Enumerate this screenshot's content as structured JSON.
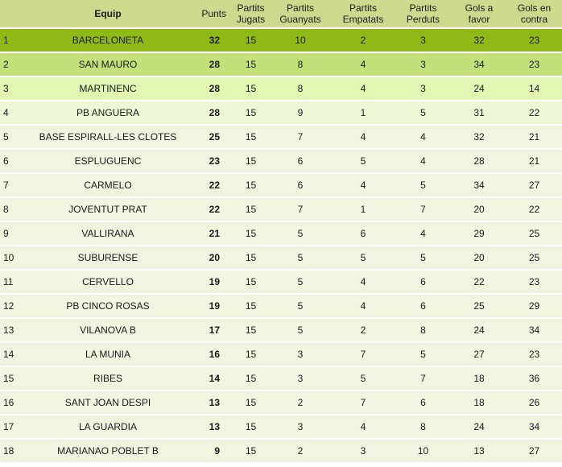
{
  "colors": {
    "header_bg": "#cdd98c",
    "row_1_bg": "#8fb916",
    "row_2_bg": "#c5e07b",
    "row_3_bg": "#e2f5b3",
    "row_4_bg": "#eef7d5",
    "row_default_bg": "#f1f5e0"
  },
  "table": {
    "headers": {
      "position": "",
      "team": "Equip",
      "points": "Punts",
      "played_1": "Partits",
      "played_2": "Jugats",
      "won_1": "Partits",
      "won_2": "Guanyats",
      "drawn_1": "Partits",
      "drawn_2": "Empatats",
      "lost_1": "Partits",
      "lost_2": "Perduts",
      "goals_for_1": "Gols a",
      "goals_for_2": "favor",
      "goals_against_1": "Gols en",
      "goals_against_2": "contra"
    },
    "rows": [
      {
        "pos": "1",
        "team": "BARCELONETA",
        "pts": "32",
        "pj": "15",
        "pg": "10",
        "pe": "2",
        "pp": "3",
        "gf": "32",
        "gc": "23"
      },
      {
        "pos": "2",
        "team": "SAN MAURO",
        "pts": "28",
        "pj": "15",
        "pg": "8",
        "pe": "4",
        "pp": "3",
        "gf": "34",
        "gc": "23"
      },
      {
        "pos": "3",
        "team": "MARTINENC",
        "pts": "28",
        "pj": "15",
        "pg": "8",
        "pe": "4",
        "pp": "3",
        "gf": "24",
        "gc": "14"
      },
      {
        "pos": "4",
        "team": "PB ANGUERA",
        "pts": "28",
        "pj": "15",
        "pg": "9",
        "pe": "1",
        "pp": "5",
        "gf": "31",
        "gc": "22"
      },
      {
        "pos": "5",
        "team": "BASE ESPIRALL-LES CLOTES",
        "pts": "25",
        "pj": "15",
        "pg": "7",
        "pe": "4",
        "pp": "4",
        "gf": "32",
        "gc": "21"
      },
      {
        "pos": "6",
        "team": "ESPLUGUENC",
        "pts": "23",
        "pj": "15",
        "pg": "6",
        "pe": "5",
        "pp": "4",
        "gf": "28",
        "gc": "21"
      },
      {
        "pos": "7",
        "team": "CARMELO",
        "pts": "22",
        "pj": "15",
        "pg": "6",
        "pe": "4",
        "pp": "5",
        "gf": "34",
        "gc": "27"
      },
      {
        "pos": "8",
        "team": "JOVENTUT PRAT",
        "pts": "22",
        "pj": "15",
        "pg": "7",
        "pe": "1",
        "pp": "7",
        "gf": "20",
        "gc": "22"
      },
      {
        "pos": "9",
        "team": "VALLIRANA",
        "pts": "21",
        "pj": "15",
        "pg": "5",
        "pe": "6",
        "pp": "4",
        "gf": "29",
        "gc": "25"
      },
      {
        "pos": "10",
        "team": "SUBURENSE",
        "pts": "20",
        "pj": "15",
        "pg": "5",
        "pe": "5",
        "pp": "5",
        "gf": "20",
        "gc": "25"
      },
      {
        "pos": "11",
        "team": "CERVELLO",
        "pts": "19",
        "pj": "15",
        "pg": "5",
        "pe": "4",
        "pp": "6",
        "gf": "22",
        "gc": "23"
      },
      {
        "pos": "12",
        "team": "PB CINCO ROSAS",
        "pts": "19",
        "pj": "15",
        "pg": "5",
        "pe": "4",
        "pp": "6",
        "gf": "25",
        "gc": "29"
      },
      {
        "pos": "13",
        "team": "VILANOVA B",
        "pts": "17",
        "pj": "15",
        "pg": "5",
        "pe": "2",
        "pp": "8",
        "gf": "24",
        "gc": "34"
      },
      {
        "pos": "14",
        "team": "LA MUNIA",
        "pts": "16",
        "pj": "15",
        "pg": "3",
        "pe": "7",
        "pp": "5",
        "gf": "27",
        "gc": "23"
      },
      {
        "pos": "15",
        "team": "RIBES",
        "pts": "14",
        "pj": "15",
        "pg": "3",
        "pe": "5",
        "pp": "7",
        "gf": "18",
        "gc": "36"
      },
      {
        "pos": "16",
        "team": "SANT JOAN DESPI",
        "pts": "13",
        "pj": "15",
        "pg": "2",
        "pe": "7",
        "pp": "6",
        "gf": "18",
        "gc": "26"
      },
      {
        "pos": "17",
        "team": "LA GUARDIA",
        "pts": "13",
        "pj": "15",
        "pg": "3",
        "pe": "4",
        "pp": "8",
        "gf": "24",
        "gc": "34"
      },
      {
        "pos": "18",
        "team": "MARIANAO POBLET B",
        "pts": "9",
        "pj": "15",
        "pg": "2",
        "pe": "3",
        "pp": "10",
        "gf": "13",
        "gc": "27"
      }
    ]
  }
}
